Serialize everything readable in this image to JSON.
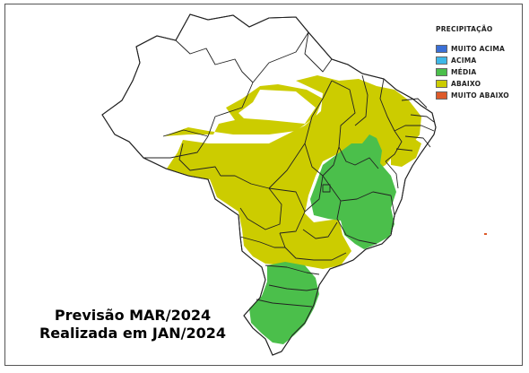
{
  "legend": {
    "title": "PRECIPITAÇÃO",
    "items": [
      {
        "label": "MUITO ACIMA",
        "color": "#3b6fd6"
      },
      {
        "label": "ACIMA",
        "color": "#3fb8e8"
      },
      {
        "label": "MÉDIA",
        "color": "#4bbf4b"
      },
      {
        "label": "ABAIXO",
        "color": "#cccc00"
      },
      {
        "label": "MUITO ABAIXO",
        "color": "#dd5a2a"
      }
    ]
  },
  "caption": {
    "line1": "Previsão MAR/2024",
    "line2": "Realizada em JAN/2024"
  },
  "map": {
    "colors": {
      "abaixo": "#cccc00",
      "media": "#4bbf4b",
      "border": "#222222",
      "background": "#ffffff"
    }
  }
}
